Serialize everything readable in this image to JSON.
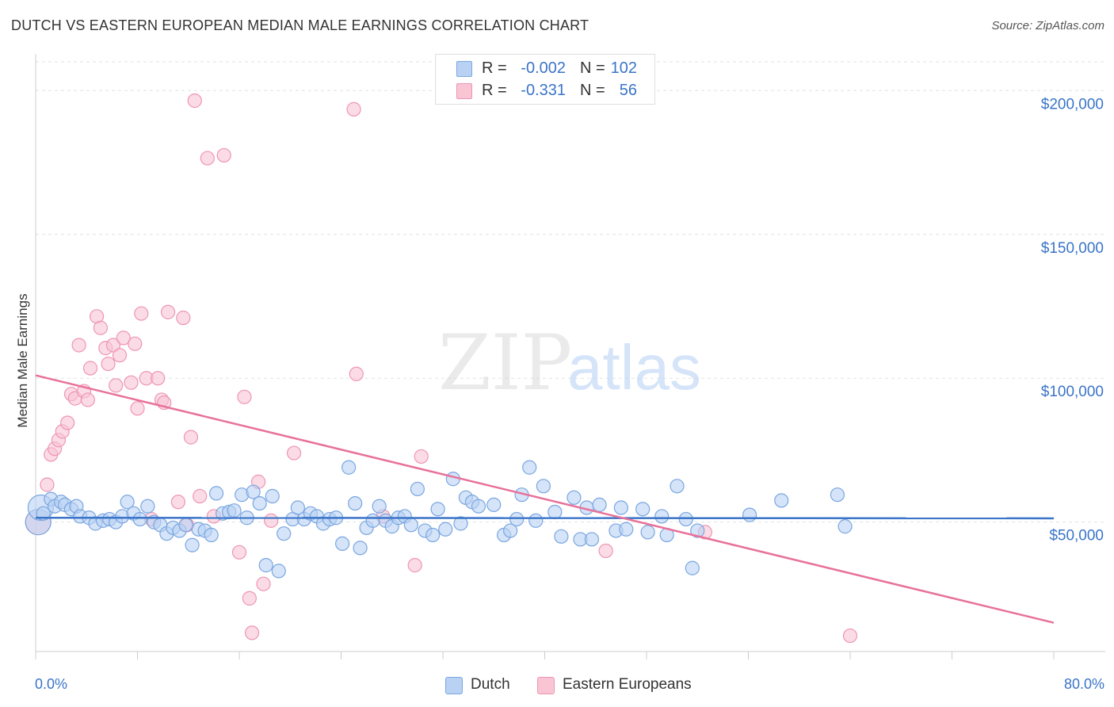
{
  "title": "DUTCH VS EASTERN EUROPEAN MEDIAN MALE EARNINGS CORRELATION CHART",
  "source": "Source: ZipAtlas.com",
  "watermark": {
    "zip": "ZIP",
    "atlas": "atlas"
  },
  "legend": {
    "rows": [
      {
        "r_label": "R =",
        "r_value": "-0.002",
        "n_label": "N =",
        "n_value": "102",
        "fill": "#b9d2f3",
        "stroke": "#7aa6e0"
      },
      {
        "r_label": "R =",
        "r_value": "-0.331",
        "n_label": "N =",
        "n_value": "56",
        "fill": "#f9c5d5",
        "stroke": "#ee95b2"
      }
    ]
  },
  "bottom_legend": [
    {
      "label": "Dutch",
      "fill": "#b9d2f3",
      "stroke": "#7aa6e0"
    },
    {
      "label": "Eastern Europeans",
      "fill": "#f9c5d5",
      "stroke": "#ee95b2"
    }
  ],
  "chart_data": {
    "type": "scatter",
    "title": "DUTCH VS EASTERN EUROPEAN MEDIAN MALE EARNINGS CORRELATION CHART",
    "xlabel": "",
    "ylabel": "Median Male Earnings",
    "xlim": [
      0,
      80
    ],
    "ylim": [
      5000,
      210000
    ],
    "x_tick_labels": [
      "0.0%",
      "80.0%"
    ],
    "y_ticks": [
      {
        "value": 50000,
        "label": "$50,000"
      },
      {
        "value": 100000,
        "label": "$100,000"
      },
      {
        "value": 150000,
        "label": "$150,000"
      },
      {
        "value": 200000,
        "label": "$200,000"
      }
    ],
    "grid": "horizontal dashed",
    "legend_position": "top-center",
    "series": [
      {
        "name": "Dutch",
        "color": "#3a74c8",
        "fill": "#b9d2f3",
        "stroke": "#7aa6e0",
        "trend": {
          "x": [
            0,
            80
          ],
          "y": [
            51500,
            51300
          ]
        },
        "points": [
          {
            "x": 0.2,
            "y": 50000,
            "big": true
          },
          {
            "x": 0.4,
            "y": 55000,
            "big": true
          },
          {
            "x": 0.6,
            "y": 53000
          },
          {
            "x": 1.2,
            "y": 58000
          },
          {
            "x": 1.5,
            "y": 55500
          },
          {
            "x": 2.0,
            "y": 57000
          },
          {
            "x": 2.3,
            "y": 56000
          },
          {
            "x": 2.8,
            "y": 54500
          },
          {
            "x": 3.2,
            "y": 55500
          },
          {
            "x": 3.5,
            "y": 52000
          },
          {
            "x": 4.2,
            "y": 51500
          },
          {
            "x": 4.7,
            "y": 49500
          },
          {
            "x": 5.3,
            "y": 50500
          },
          {
            "x": 5.8,
            "y": 51000
          },
          {
            "x": 6.3,
            "y": 50000
          },
          {
            "x": 6.8,
            "y": 52000
          },
          {
            "x": 7.2,
            "y": 57000
          },
          {
            "x": 7.7,
            "y": 53000
          },
          {
            "x": 8.2,
            "y": 51000
          },
          {
            "x": 8.8,
            "y": 55500
          },
          {
            "x": 9.3,
            "y": 50000
          },
          {
            "x": 9.8,
            "y": 49000
          },
          {
            "x": 10.3,
            "y": 46000
          },
          {
            "x": 10.8,
            "y": 48000
          },
          {
            "x": 11.3,
            "y": 47000
          },
          {
            "x": 11.8,
            "y": 49000
          },
          {
            "x": 12.3,
            "y": 42000
          },
          {
            "x": 12.8,
            "y": 47500
          },
          {
            "x": 13.3,
            "y": 47000
          },
          {
            "x": 13.8,
            "y": 45500
          },
          {
            "x": 14.2,
            "y": 60000
          },
          {
            "x": 14.7,
            "y": 53000
          },
          {
            "x": 15.2,
            "y": 53500
          },
          {
            "x": 15.6,
            "y": 54000
          },
          {
            "x": 16.2,
            "y": 59500
          },
          {
            "x": 16.6,
            "y": 51500
          },
          {
            "x": 17.1,
            "y": 60500
          },
          {
            "x": 17.6,
            "y": 56500
          },
          {
            "x": 18.1,
            "y": 35000
          },
          {
            "x": 18.6,
            "y": 59000
          },
          {
            "x": 19.1,
            "y": 33000
          },
          {
            "x": 19.5,
            "y": 46000
          },
          {
            "x": 20.2,
            "y": 51000
          },
          {
            "x": 20.6,
            "y": 55000
          },
          {
            "x": 21.1,
            "y": 51000
          },
          {
            "x": 21.6,
            "y": 53000
          },
          {
            "x": 22.1,
            "y": 52000
          },
          {
            "x": 22.6,
            "y": 49500
          },
          {
            "x": 23.1,
            "y": 51000
          },
          {
            "x": 23.6,
            "y": 51500
          },
          {
            "x": 24.1,
            "y": 42500
          },
          {
            "x": 24.6,
            "y": 69000
          },
          {
            "x": 25.1,
            "y": 56500
          },
          {
            "x": 25.5,
            "y": 41000
          },
          {
            "x": 26.0,
            "y": 48000
          },
          {
            "x": 26.5,
            "y": 50500
          },
          {
            "x": 27.0,
            "y": 55500
          },
          {
            "x": 27.5,
            "y": 50500
          },
          {
            "x": 28.0,
            "y": 48500
          },
          {
            "x": 28.5,
            "y": 51500
          },
          {
            "x": 29.0,
            "y": 52000
          },
          {
            "x": 29.5,
            "y": 49000
          },
          {
            "x": 30.0,
            "y": 61500
          },
          {
            "x": 30.6,
            "y": 47000
          },
          {
            "x": 31.2,
            "y": 45500
          },
          {
            "x": 31.6,
            "y": 54500
          },
          {
            "x": 32.2,
            "y": 47500
          },
          {
            "x": 32.8,
            "y": 65000
          },
          {
            "x": 33.4,
            "y": 49500
          },
          {
            "x": 33.8,
            "y": 58500
          },
          {
            "x": 34.3,
            "y": 57000
          },
          {
            "x": 34.8,
            "y": 55500
          },
          {
            "x": 36.0,
            "y": 56000
          },
          {
            "x": 36.8,
            "y": 45500
          },
          {
            "x": 37.3,
            "y": 47000
          },
          {
            "x": 37.8,
            "y": 51000
          },
          {
            "x": 38.2,
            "y": 59500
          },
          {
            "x": 38.8,
            "y": 69000
          },
          {
            "x": 39.3,
            "y": 50500
          },
          {
            "x": 39.9,
            "y": 62500
          },
          {
            "x": 40.8,
            "y": 53500
          },
          {
            "x": 41.3,
            "y": 45000
          },
          {
            "x": 42.3,
            "y": 58500
          },
          {
            "x": 42.8,
            "y": 44000
          },
          {
            "x": 43.3,
            "y": 55000
          },
          {
            "x": 43.7,
            "y": 44000
          },
          {
            "x": 44.3,
            "y": 56000
          },
          {
            "x": 45.6,
            "y": 47000
          },
          {
            "x": 46.0,
            "y": 55000
          },
          {
            "x": 46.4,
            "y": 47500
          },
          {
            "x": 47.7,
            "y": 54500
          },
          {
            "x": 48.1,
            "y": 46500
          },
          {
            "x": 49.2,
            "y": 52000
          },
          {
            "x": 49.6,
            "y": 45500
          },
          {
            "x": 50.4,
            "y": 62500
          },
          {
            "x": 51.1,
            "y": 51000
          },
          {
            "x": 51.6,
            "y": 34000
          },
          {
            "x": 52.0,
            "y": 47000
          },
          {
            "x": 56.1,
            "y": 52500
          },
          {
            "x": 58.6,
            "y": 57500
          },
          {
            "x": 63.0,
            "y": 59500
          },
          {
            "x": 63.6,
            "y": 48500
          }
        ]
      },
      {
        "name": "Eastern Europeans",
        "color": "#e8719a",
        "fill": "#f9c5d5",
        "stroke": "#ee95b2",
        "trend": {
          "x": [
            0,
            80
          ],
          "y": [
            101000,
            15000
          ]
        },
        "points": [
          {
            "x": 0.2,
            "y": 50000,
            "big": true
          },
          {
            "x": 0.9,
            "y": 63000
          },
          {
            "x": 1.2,
            "y": 73500
          },
          {
            "x": 1.5,
            "y": 75500
          },
          {
            "x": 1.8,
            "y": 78500
          },
          {
            "x": 2.1,
            "y": 81500
          },
          {
            "x": 2.5,
            "y": 84500
          },
          {
            "x": 2.8,
            "y": 94500
          },
          {
            "x": 3.1,
            "y": 93000
          },
          {
            "x": 3.4,
            "y": 111500
          },
          {
            "x": 3.8,
            "y": 95500
          },
          {
            "x": 4.1,
            "y": 92500
          },
          {
            "x": 4.3,
            "y": 103500
          },
          {
            "x": 4.8,
            "y": 121500
          },
          {
            "x": 5.1,
            "y": 117500
          },
          {
            "x": 5.5,
            "y": 110500
          },
          {
            "x": 5.7,
            "y": 105000
          },
          {
            "x": 6.1,
            "y": 111500
          },
          {
            "x": 6.3,
            "y": 97500
          },
          {
            "x": 6.6,
            "y": 108000
          },
          {
            "x": 6.9,
            "y": 114000
          },
          {
            "x": 7.5,
            "y": 98500
          },
          {
            "x": 7.8,
            "y": 112000
          },
          {
            "x": 8.0,
            "y": 89500
          },
          {
            "x": 8.3,
            "y": 122500
          },
          {
            "x": 8.7,
            "y": 100000
          },
          {
            "x": 9.1,
            "y": 51000
          },
          {
            "x": 9.6,
            "y": 100000
          },
          {
            "x": 9.9,
            "y": 92500
          },
          {
            "x": 10.1,
            "y": 91500
          },
          {
            "x": 10.4,
            "y": 123000
          },
          {
            "x": 11.2,
            "y": 57000
          },
          {
            "x": 11.6,
            "y": 121000
          },
          {
            "x": 11.9,
            "y": 49000
          },
          {
            "x": 12.2,
            "y": 79500
          },
          {
            "x": 12.5,
            "y": 196500
          },
          {
            "x": 12.9,
            "y": 59000
          },
          {
            "x": 13.5,
            "y": 176500
          },
          {
            "x": 14.0,
            "y": 52000
          },
          {
            "x": 14.8,
            "y": 177500
          },
          {
            "x": 16.0,
            "y": 39500
          },
          {
            "x": 16.4,
            "y": 93500
          },
          {
            "x": 16.8,
            "y": 23500
          },
          {
            "x": 17.0,
            "y": 11500
          },
          {
            "x": 17.5,
            "y": 64000
          },
          {
            "x": 17.9,
            "y": 28500
          },
          {
            "x": 18.5,
            "y": 50500
          },
          {
            "x": 20.3,
            "y": 74000
          },
          {
            "x": 25.0,
            "y": 193500
          },
          {
            "x": 25.2,
            "y": 101500
          },
          {
            "x": 27.3,
            "y": 52000
          },
          {
            "x": 29.8,
            "y": 35000
          },
          {
            "x": 30.3,
            "y": 72800
          },
          {
            "x": 44.8,
            "y": 40000
          },
          {
            "x": 52.6,
            "y": 46500
          },
          {
            "x": 64.0,
            "y": 10500
          }
        ]
      }
    ]
  }
}
